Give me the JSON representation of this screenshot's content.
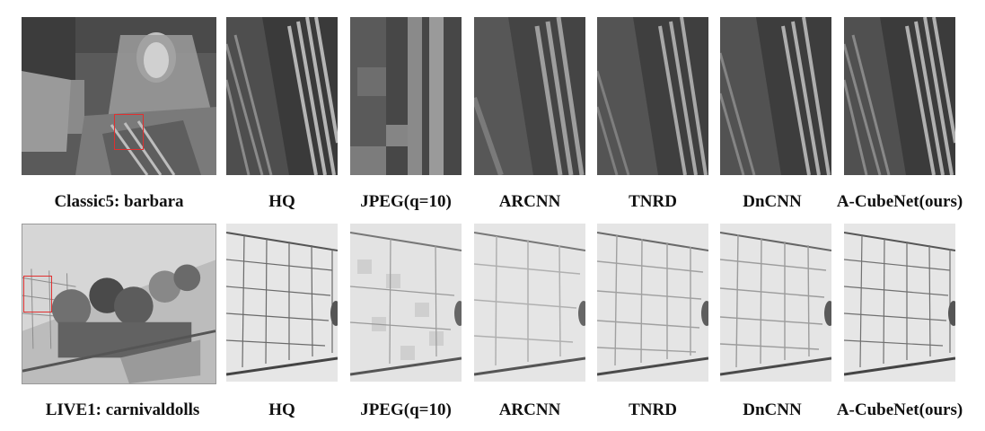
{
  "figure": {
    "rows": [
      {
        "labels": [
          "Classic5: barbara",
          "HQ",
          "JPEG(q=10)",
          "ARCNN",
          "TNRD",
          "DnCNN",
          "A-CubeNet(ours)"
        ]
      },
      {
        "labels": [
          "LIVE1: carnivaldolls",
          "HQ",
          "JPEG(q=10)",
          "ARCNN",
          "TNRD",
          "DnCNN",
          "A-CubeNet(ours)"
        ]
      }
    ],
    "colors": {
      "highlight_box": "#e03030"
    }
  }
}
